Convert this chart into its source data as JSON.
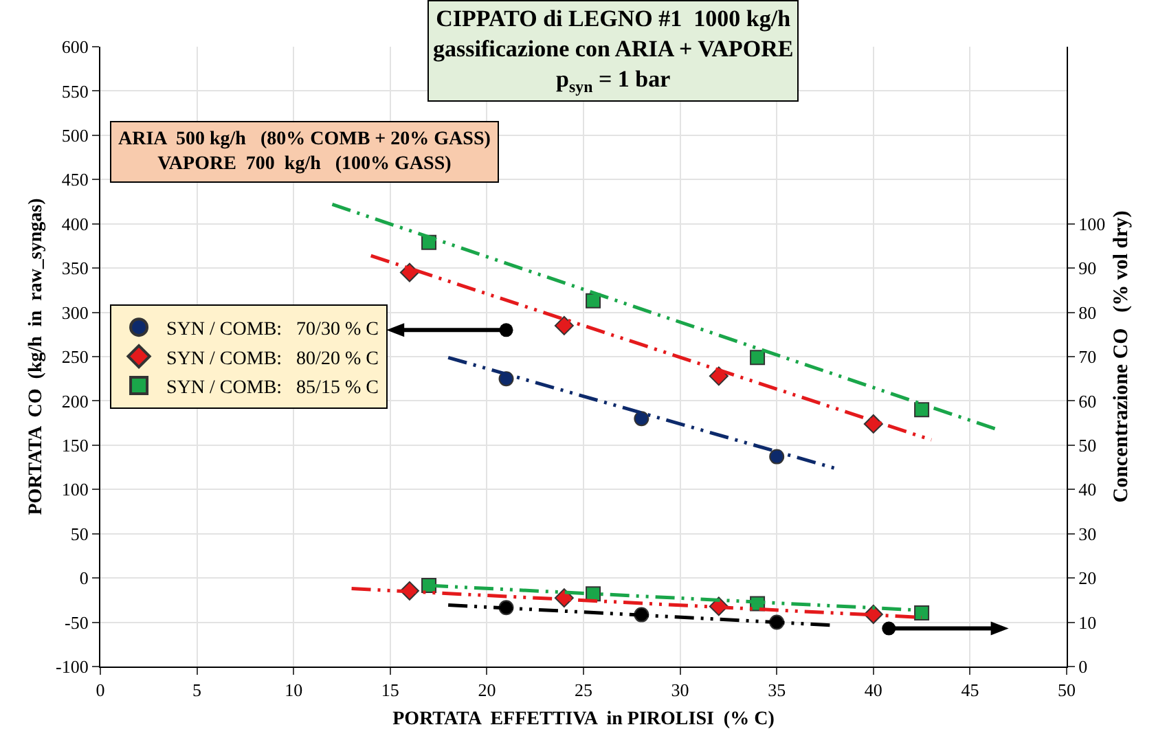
{
  "chart_data": {
    "type": "scatter",
    "title": "CIPPATO di LEGNO #1  1000 kg/h\ngassificazione con ARIA + VAPORE\np$_{syn}$ = 1 bar",
    "xlabel": "PORTATA  EFFETTIVA  in PIROLISI  (% C)",
    "ylabel": "PORTATA  CO  (kg/h  in  raw_syngas)",
    "y2label": "Concentrazione CO   (% vol dry)",
    "annotations": [
      "ARIA  500 kg/h   (80% COMB + 20% GASS)\nVAPORE  700  kg/h   (100% GASS)"
    ],
    "xlim": [
      0,
      50
    ],
    "xticks": [
      0,
      5,
      10,
      15,
      20,
      25,
      30,
      35,
      40,
      45,
      50
    ],
    "ylim": [
      -100,
      600
    ],
    "yticks": [
      -100,
      -50,
      0,
      50,
      100,
      150,
      200,
      250,
      300,
      350,
      400,
      450,
      500,
      550,
      600
    ],
    "y2lim": [
      0,
      140
    ],
    "y2ticks": [
      0,
      10,
      20,
      30,
      40,
      50,
      60,
      70,
      80,
      90,
      100
    ],
    "grid": true,
    "legend": "left",
    "line_style": "dashed",
    "series": [
      {
        "name": "SYN / COMB:   70/30 % C",
        "color": "#0d2a6b",
        "marker": "circle",
        "x": [
          21,
          28,
          35
        ],
        "values": [
          225,
          180,
          137
        ]
      },
      {
        "name": "SYN / COMB:   80/20 % C",
        "color": "#e41a1c",
        "marker": "diamond",
        "x": [
          16,
          24,
          32,
          40
        ],
        "values": [
          345,
          285,
          228,
          174
        ]
      },
      {
        "name": "SYN / COMB:   85/15 % C",
        "color": "#1aa64a",
        "marker": "square",
        "x": [
          17,
          25.5,
          34,
          42.5
        ],
        "values": [
          379,
          313,
          249,
          190
        ]
      },
      {
        "type": "line",
        "color": "#0d2a6b",
        "x": [
          18,
          38
        ],
        "values": [
          249,
          124
        ]
      },
      {
        "type": "line",
        "color": "#e41a1c",
        "x": [
          14,
          43
        ],
        "values": [
          364,
          156
        ]
      },
      {
        "type": "line",
        "color": "#1aa64a",
        "x": [
          12,
          46.5
        ],
        "values": [
          422,
          167
        ]
      },
      {
        "color": "#000000",
        "marker": "circle",
        "axis": "y2",
        "x": [
          21,
          28,
          35
        ],
        "values": [
          13.3,
          11.7,
          10.0
        ]
      },
      {
        "color": "#e41a1c",
        "marker": "diamond",
        "axis": "y2",
        "x": [
          16,
          24,
          32,
          40
        ],
        "values": [
          17.1,
          15.5,
          13.6,
          11.8
        ]
      },
      {
        "color": "#1aa64a",
        "marker": "square",
        "axis": "y2",
        "x": [
          17,
          25.5,
          34,
          42.5
        ],
        "values": [
          18.3,
          16.4,
          14.2,
          12.1
        ]
      },
      {
        "type": "line",
        "color": "#000000",
        "axis": "y2",
        "x": [
          18,
          38
        ],
        "values": [
          13.9,
          9.3
        ]
      },
      {
        "type": "line",
        "color": "#e41a1c",
        "axis": "y2",
        "x": [
          13,
          42.5
        ],
        "values": [
          17.6,
          11.1
        ]
      },
      {
        "type": "line",
        "color": "#1aa64a",
        "axis": "y2",
        "x": [
          17,
          42.5
        ],
        "values": [
          18.3,
          12.7
        ]
      }
    ]
  }
}
